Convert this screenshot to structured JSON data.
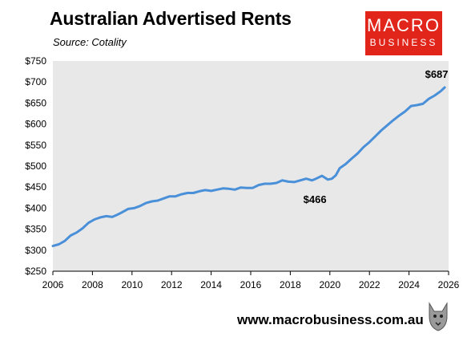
{
  "title": "Australian Advertised Rents",
  "subtitle": "Source: Cotality",
  "logo": {
    "line1": "MACRO",
    "line2": "BUSINESS"
  },
  "footer": {
    "url": "www.macrobusiness.com.au"
  },
  "colors": {
    "line": "#4a90d9",
    "plot_bg": "#e8e8e8",
    "logo_bg": "#e1251b"
  },
  "chart_data": {
    "type": "line",
    "title": "Australian Advertised Rents",
    "xlim": [
      2006,
      2026
    ],
    "ylim": [
      250,
      750
    ],
    "xticks": [
      2006,
      2008,
      2010,
      2012,
      2014,
      2016,
      2018,
      2020,
      2022,
      2024,
      2026
    ],
    "xtick_labels": [
      "2006",
      "2008",
      "2010",
      "2012",
      "2014",
      "2016",
      "2018",
      "2020",
      "2022",
      "2024",
      "2026"
    ],
    "yticks": [
      250,
      300,
      350,
      400,
      450,
      500,
      550,
      600,
      650,
      700,
      750
    ],
    "ytick_labels": [
      "$250",
      "$300",
      "$350",
      "$400",
      "$450",
      "$500",
      "$550",
      "$600",
      "$650",
      "$700",
      "$750"
    ],
    "grid": false,
    "series": [
      {
        "x": [
          2006.0,
          2006.3,
          2006.6,
          2006.9,
          2007.2,
          2007.5,
          2007.8,
          2008.1,
          2008.4,
          2008.7,
          2009.0,
          2009.2,
          2009.5,
          2009.8,
          2010.1,
          2010.4,
          2010.7,
          2011.0,
          2011.3,
          2011.6,
          2011.9,
          2012.2,
          2012.5,
          2012.8,
          2013.1,
          2013.4,
          2013.7,
          2014.0,
          2014.3,
          2014.6,
          2014.9,
          2015.2,
          2015.5,
          2015.8,
          2016.1,
          2016.4,
          2016.7,
          2017.0,
          2017.3,
          2017.6,
          2017.9,
          2018.2,
          2018.5,
          2018.8,
          2019.1,
          2019.3,
          2019.6,
          2019.9,
          2020.1,
          2020.3,
          2020.5,
          2020.8,
          2021.1,
          2021.4,
          2021.7,
          2022.0,
          2022.3,
          2022.6,
          2022.9,
          2023.2,
          2023.5,
          2023.8,
          2024.1,
          2024.4,
          2024.7,
          2025.0,
          2025.3,
          2025.6,
          2025.8
        ],
        "y": [
          310,
          314,
          322,
          335,
          342,
          352,
          365,
          373,
          378,
          381,
          379,
          383,
          390,
          398,
          400,
          405,
          412,
          416,
          418,
          423,
          428,
          428,
          433,
          436,
          436,
          440,
          443,
          441,
          444,
          447,
          446,
          444,
          449,
          448,
          448,
          455,
          458,
          458,
          460,
          466,
          463,
          462,
          466,
          470,
          466,
          470,
          477,
          468,
          470,
          478,
          495,
          505,
          518,
          530,
          545,
          557,
          571,
          585,
          597,
          609,
          620,
          630,
          643,
          645,
          648,
          660,
          668,
          678,
          687
        ]
      }
    ],
    "annotations": [
      {
        "text": "$466",
        "x": 2019.0,
        "y": 466
      },
      {
        "text": "$687",
        "x": 2025.8,
        "y": 687
      }
    ]
  }
}
